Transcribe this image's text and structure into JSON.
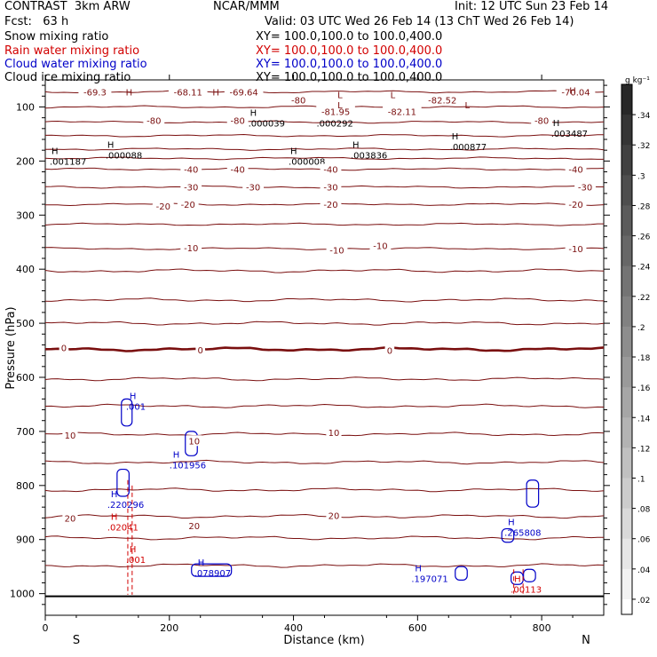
{
  "header": {
    "left_title": "CONTRAST  3km ARW",
    "center_title": "NCAR/MMM",
    "init": "Init: 12 UTC Sun 23 Feb 14",
    "fcst": "Fcst:   63 h",
    "valid": "Valid: 03 UTC Wed 26 Feb 14 (13 ChT Wed 26 Feb 14)",
    "fields": [
      {
        "name": "Snow mixing ratio",
        "xy": "XY= 100.0,100.0 to 100.0,400.0",
        "color": "#000000"
      },
      {
        "name": "Rain water mixing ratio",
        "xy": "XY= 100.0,100.0 to 100.0,400.0",
        "color": "#d20000"
      },
      {
        "name": "Cloud water mixing ratio",
        "xy": "XY= 100.0,100.0 to 100.0,400.0",
        "color": "#0000c8"
      },
      {
        "name": "Cloud ice mixing ratio",
        "xy": "XY= 100.0,100.0 to 100.0,400.0",
        "color": "#000000"
      }
    ]
  },
  "chart_data": {
    "type": "cross-section",
    "xlabel": "Distance (km)",
    "ylabel": "Pressure (hPa)",
    "xlim": [
      0,
      900
    ],
    "ylim": [
      50,
      1040
    ],
    "x_ticks": [
      0,
      200,
      400,
      600,
      800
    ],
    "y_ticks": [
      100,
      200,
      300,
      400,
      500,
      600,
      700,
      800,
      900,
      1000
    ],
    "endpoint_labels": {
      "left": "S",
      "right": "N"
    },
    "temperature_contours": [
      {
        "p": 72,
        "label": ""
      },
      {
        "p": 100,
        "label": ""
      },
      {
        "p": 128,
        "label": "-80"
      },
      {
        "p": 153,
        "label": ""
      },
      {
        "p": 178,
        "label": ""
      },
      {
        "p": 195,
        "label": ""
      },
      {
        "p": 215,
        "label": "-40"
      },
      {
        "p": 248,
        "label": "-30"
      },
      {
        "p": 280,
        "label": "-20"
      },
      {
        "p": 317,
        "label": ""
      },
      {
        "p": 362,
        "label": "-10"
      },
      {
        "p": 403,
        "label": ""
      },
      {
        "p": 457,
        "label": ""
      },
      {
        "p": 500,
        "label": ""
      },
      {
        "p": 548,
        "label": "0",
        "freezing": true
      },
      {
        "p": 603,
        "label": ""
      },
      {
        "p": 653,
        "label": ""
      },
      {
        "p": 705,
        "label": "10"
      },
      {
        "p": 757,
        "label": ""
      },
      {
        "p": 808,
        "label": ""
      },
      {
        "p": 857,
        "label": "20"
      },
      {
        "p": 897,
        "label": ""
      },
      {
        "p": 948,
        "label": ""
      }
    ],
    "contour_labels": [
      {
        "x": 80,
        "p": 72,
        "text": "-69.3"
      },
      {
        "x": 230,
        "p": 72,
        "text": "-68.11"
      },
      {
        "x": 320,
        "p": 72,
        "text": "-69.64"
      },
      {
        "x": 855,
        "p": 72,
        "text": "-70.04"
      },
      {
        "x": 408,
        "p": 87,
        "text": "-80"
      },
      {
        "x": 640,
        "p": 87,
        "text": "-82.52"
      },
      {
        "x": 468,
        "p": 108,
        "text": "-81.95"
      },
      {
        "x": 575,
        "p": 108,
        "text": "-82.11"
      },
      {
        "x": 175,
        "p": 125,
        "text": "-80"
      },
      {
        "x": 310,
        "p": 125,
        "text": "-80"
      },
      {
        "x": 800,
        "p": 125,
        "text": "-80"
      },
      {
        "x": 235,
        "p": 215,
        "text": "-40"
      },
      {
        "x": 310,
        "p": 215,
        "text": "-40"
      },
      {
        "x": 460,
        "p": 215,
        "text": "-40"
      },
      {
        "x": 855,
        "p": 215,
        "text": "-40"
      },
      {
        "x": 235,
        "p": 248,
        "text": "-30"
      },
      {
        "x": 335,
        "p": 248,
        "text": "-30"
      },
      {
        "x": 460,
        "p": 248,
        "text": "-30"
      },
      {
        "x": 870,
        "p": 248,
        "text": "-30"
      },
      {
        "x": 190,
        "p": 283,
        "text": "-20"
      },
      {
        "x": 230,
        "p": 280,
        "text": "-20"
      },
      {
        "x": 460,
        "p": 280,
        "text": "-20"
      },
      {
        "x": 855,
        "p": 280,
        "text": "-20"
      },
      {
        "x": 235,
        "p": 360,
        "text": "-10"
      },
      {
        "x": 470,
        "p": 364,
        "text": "-10"
      },
      {
        "x": 540,
        "p": 356,
        "text": "-10"
      },
      {
        "x": 855,
        "p": 362,
        "text": "-10"
      },
      {
        "x": 30,
        "p": 545,
        "text": "0"
      },
      {
        "x": 250,
        "p": 549,
        "text": "0"
      },
      {
        "x": 555,
        "p": 550,
        "text": "0"
      },
      {
        "x": 40,
        "p": 707,
        "text": "10"
      },
      {
        "x": 240,
        "p": 717,
        "text": "10"
      },
      {
        "x": 465,
        "p": 702,
        "text": "10"
      },
      {
        "x": 40,
        "p": 860,
        "text": "20"
      },
      {
        "x": 240,
        "p": 874,
        "text": "20"
      },
      {
        "x": 465,
        "p": 855,
        "text": "20"
      }
    ],
    "high_low_markers": [
      {
        "x": 135,
        "p": 72,
        "text": "H"
      },
      {
        "x": 275,
        "p": 72,
        "text": "H"
      },
      {
        "x": 475,
        "p": 77,
        "text": "L"
      },
      {
        "x": 560,
        "p": 77,
        "text": "L"
      },
      {
        "x": 850,
        "p": 69,
        "text": "H"
      },
      {
        "x": 475,
        "p": 96,
        "text": "L"
      },
      {
        "x": 680,
        "p": 96,
        "text": "L"
      }
    ],
    "snow_maxima": [
      {
        "x": 330,
        "p": 120,
        "value": ".000039"
      },
      {
        "x": 440,
        "p": 120,
        "value": ".000292"
      },
      {
        "x": 655,
        "p": 163,
        "value": ".000877"
      },
      {
        "x": 100,
        "p": 179,
        "value": ".000088"
      },
      {
        "x": 10,
        "p": 190,
        "value": ".001187"
      },
      {
        "x": 395,
        "p": 190,
        "value": ".000008"
      },
      {
        "x": 495,
        "p": 179,
        "value": ".003836"
      },
      {
        "x": 818,
        "p": 139,
        "value": ".003487"
      }
    ],
    "cloud_water_maxima": [
      {
        "x": 130,
        "p": 647,
        "value": ".001"
      },
      {
        "x": 200,
        "p": 755,
        "value": ".101956"
      },
      {
        "x": 100,
        "p": 828,
        "value": ".220296"
      },
      {
        "x": 240,
        "p": 955,
        "value": ".078907"
      },
      {
        "x": 590,
        "p": 965,
        "value": ".197071"
      },
      {
        "x": 740,
        "p": 880,
        "value": ".265808"
      }
    ],
    "rain_water_maxima": [
      {
        "x": 100,
        "p": 870,
        "value": ".02041"
      },
      {
        "x": 130,
        "p": 930,
        "value": ".001"
      },
      {
        "x": 750,
        "p": 985,
        "value": ".00113"
      }
    ],
    "colorbar": {
      "unit": "g kg⁻¹",
      "labels": [
        ".34",
        ".32",
        ".3",
        ".28",
        ".26",
        ".24",
        ".22",
        ".2",
        ".18",
        ".16",
        ".14",
        ".12",
        ".1",
        ".08",
        ".06",
        ".04",
        ".02"
      ],
      "levels": [
        0.34,
        0.32,
        0.3,
        0.28,
        0.26,
        0.24,
        0.22,
        0.2,
        0.18,
        0.16,
        0.14,
        0.12,
        0.1,
        0.08,
        0.06,
        0.04,
        0.02
      ]
    },
    "colors": {
      "temperature": "#7a0f0f",
      "snow": "#000000",
      "rain": "#d20000",
      "cloud_water": "#0000c8",
      "frame": "#000000"
    }
  }
}
